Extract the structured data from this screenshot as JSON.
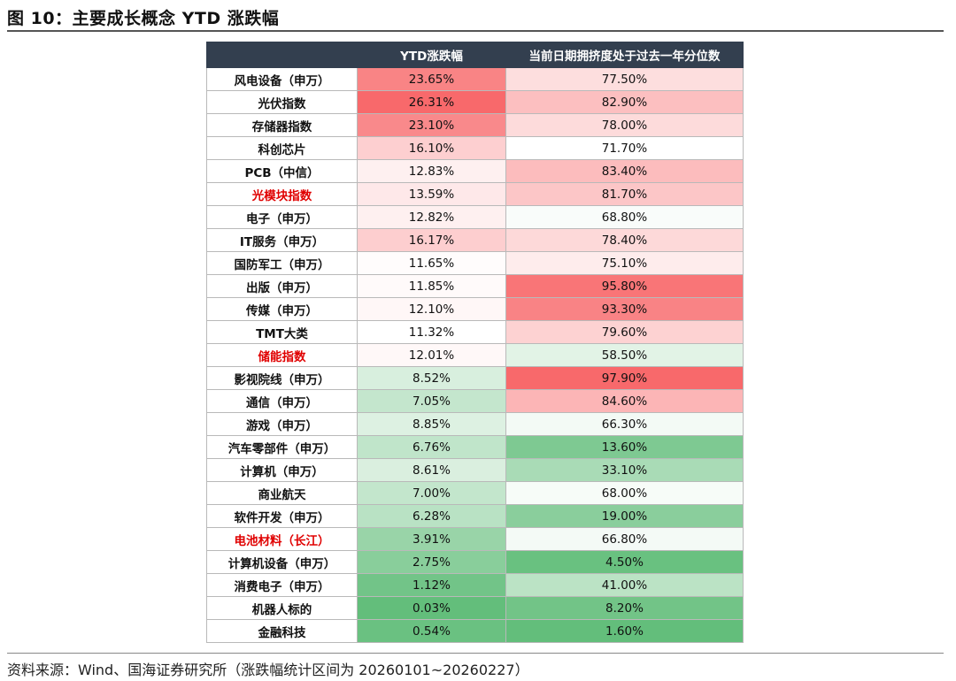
{
  "title": "图 10：主要成长概念 YTD 涨跌幅",
  "source": "资料来源：Wind、国海证券研究所（涨跌幅统计区间为 20260101~20260227）",
  "chart_data": {
    "type": "table",
    "columns": [
      "",
      "YTD涨跌幅",
      "当前日期拥挤度处于过去一年分位数"
    ],
    "highlight_color": "#e00000",
    "rows": [
      {
        "name": "风电设备（申万）",
        "ytd": "23.65%",
        "pct": "77.50%",
        "highlight": false
      },
      {
        "name": "光伏指数",
        "ytd": "26.31%",
        "pct": "82.90%",
        "highlight": false
      },
      {
        "name": "存储器指数",
        "ytd": "23.10%",
        "pct": "78.00%",
        "highlight": false
      },
      {
        "name": "科创芯片",
        "ytd": "16.10%",
        "pct": "71.70%",
        "highlight": false
      },
      {
        "name": "PCB（中信）",
        "ytd": "12.83%",
        "pct": "83.40%",
        "highlight": false
      },
      {
        "name": "光模块指数",
        "ytd": "13.59%",
        "pct": "81.70%",
        "highlight": true
      },
      {
        "name": "电子（申万）",
        "ytd": "12.82%",
        "pct": "68.80%",
        "highlight": false
      },
      {
        "name": "IT服务（申万）",
        "ytd": "16.17%",
        "pct": "78.40%",
        "highlight": false
      },
      {
        "name": "国防军工（申万）",
        "ytd": "11.65%",
        "pct": "75.10%",
        "highlight": false
      },
      {
        "name": "出版（申万）",
        "ytd": "11.85%",
        "pct": "95.80%",
        "highlight": false
      },
      {
        "name": "传媒（申万）",
        "ytd": "12.10%",
        "pct": "93.30%",
        "highlight": false
      },
      {
        "name": "TMT大类",
        "ytd": "11.32%",
        "pct": "79.60%",
        "highlight": false
      },
      {
        "name": "储能指数",
        "ytd": "12.01%",
        "pct": "58.50%",
        "highlight": true
      },
      {
        "name": "影视院线（申万）",
        "ytd": "8.52%",
        "pct": "97.90%",
        "highlight": false
      },
      {
        "name": "通信（申万）",
        "ytd": "7.05%",
        "pct": "84.60%",
        "highlight": false
      },
      {
        "name": "游戏（申万）",
        "ytd": "8.85%",
        "pct": "66.30%",
        "highlight": false
      },
      {
        "name": "汽车零部件（申万）",
        "ytd": "6.76%",
        "pct": "13.60%",
        "highlight": false
      },
      {
        "name": "计算机（申万）",
        "ytd": "8.61%",
        "pct": "33.10%",
        "highlight": false
      },
      {
        "name": "商业航天",
        "ytd": "7.00%",
        "pct": "68.00%",
        "highlight": false
      },
      {
        "name": "软件开发（申万）",
        "ytd": "6.28%",
        "pct": "19.00%",
        "highlight": false
      },
      {
        "name": "电池材料（长江）",
        "ytd": "3.91%",
        "pct": "66.80%",
        "highlight": true
      },
      {
        "name": "计算机设备（申万）",
        "ytd": "2.75%",
        "pct": "4.50%",
        "highlight": false
      },
      {
        "name": "消费电子（申万）",
        "ytd": "1.12%",
        "pct": "41.00%",
        "highlight": false
      },
      {
        "name": "机器人标的",
        "ytd": "0.03%",
        "pct": "8.20%",
        "highlight": false
      },
      {
        "name": "金融科技",
        "ytd": "0.54%",
        "pct": "1.60%",
        "highlight": false
      }
    ]
  }
}
